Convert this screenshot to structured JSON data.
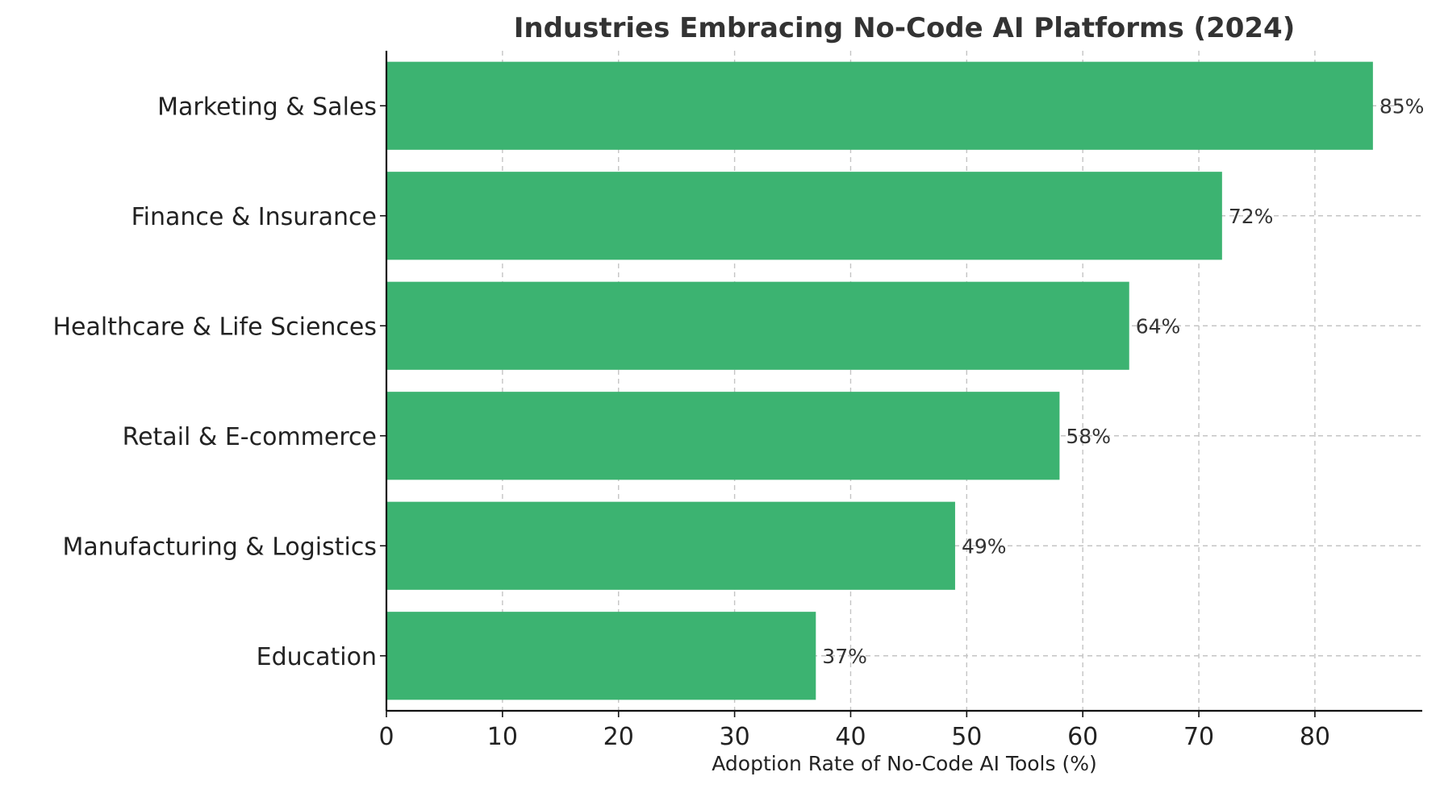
{
  "chart_data": {
    "type": "bar",
    "orientation": "horizontal",
    "title": "Industries Embracing No-Code AI Platforms (2024)",
    "xlabel": "Adoption Rate of No-Code AI Tools (%)",
    "ylabel": "",
    "categories": [
      "Marketing & Sales",
      "Finance & Insurance",
      "Healthcare & Life Sciences",
      "Retail & E-commerce",
      "Manufacturing & Logistics",
      "Education"
    ],
    "values": [
      85,
      72,
      64,
      58,
      49,
      37
    ],
    "value_labels": [
      "85%",
      "72%",
      "64%",
      "58%",
      "49%",
      "37%"
    ],
    "xlim": [
      0,
      89.25
    ],
    "xticks": [
      0,
      10,
      20,
      30,
      40,
      50,
      60,
      70,
      80
    ],
    "grid": true,
    "bar_color": "#3cb371"
  }
}
